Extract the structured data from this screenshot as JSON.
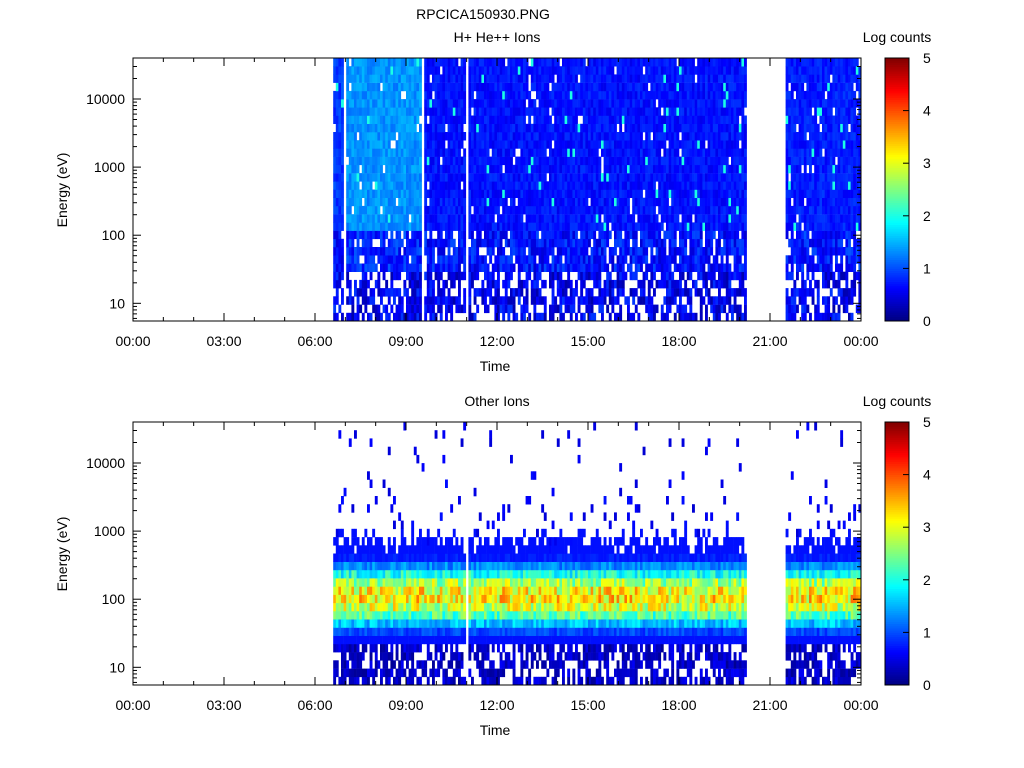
{
  "figure_title": "RPCICA150930.PNG",
  "chart_data": [
    {
      "type": "heatmap",
      "title": "H+ He++ Ions",
      "xlabel": "Time",
      "ylabel": "Energy (eV)",
      "x_ticks": [
        "00:00",
        "03:00",
        "06:00",
        "09:00",
        "12:00",
        "15:00",
        "18:00",
        "21:00",
        "00:00"
      ],
      "x_tick_hours": [
        0,
        3,
        6,
        9,
        12,
        15,
        18,
        21,
        24
      ],
      "y_scale": "log",
      "y_ticks": [
        10,
        100,
        1000,
        10000
      ],
      "y_tick_labels": [
        "10",
        "100",
        "1000",
        "10000"
      ],
      "ylim": [
        5.5,
        40000
      ],
      "colorbar": {
        "label": "Log counts",
        "ticks": [
          "0",
          "1",
          "2",
          "3",
          "4",
          "5"
        ],
        "range": [
          0,
          5
        ]
      },
      "data_coverage_hours": [
        [
          6.55,
          20.15
        ],
        [
          21.5,
          23.95
        ]
      ],
      "gaps_hours": [
        [
          6.9,
          7.0
        ],
        [
          9.45,
          9.55
        ],
        [
          10.95,
          11.05
        ]
      ],
      "segments": [
        {
          "start_h": 6.55,
          "end_h": 7.0,
          "level_high": 0.9,
          "level_low": 0.7
        },
        {
          "start_h": 7.0,
          "end_h": 9.45,
          "level_high": 1.35,
          "level_low": 0.8
        },
        {
          "start_h": 9.55,
          "end_h": 20.15,
          "level_high": 0.7,
          "level_low": 0.7
        },
        {
          "start_h": 21.5,
          "end_h": 23.95,
          "level_high": 0.75,
          "level_low": 0.75
        }
      ]
    },
    {
      "type": "heatmap",
      "title": "Other Ions",
      "xlabel": "Time",
      "ylabel": "Energy (eV)",
      "x_ticks": [
        "00:00",
        "03:00",
        "06:00",
        "09:00",
        "12:00",
        "15:00",
        "18:00",
        "21:00",
        "00:00"
      ],
      "x_tick_hours": [
        0,
        3,
        6,
        9,
        12,
        15,
        18,
        21,
        24
      ],
      "y_scale": "log",
      "y_ticks": [
        10,
        100,
        1000,
        10000
      ],
      "y_tick_labels": [
        "10",
        "100",
        "1000",
        "10000"
      ],
      "ylim": [
        5.5,
        40000
      ],
      "colorbar": {
        "label": "Log counts",
        "ticks": [
          "0",
          "1",
          "2",
          "3",
          "4",
          "5"
        ],
        "range": [
          0,
          5
        ]
      },
      "data_coverage_hours": [
        [
          6.55,
          20.15
        ],
        [
          21.5,
          23.95
        ]
      ],
      "gaps_hours": [
        [
          10.95,
          11.0
        ]
      ],
      "band": {
        "center_eV": 110,
        "peak_log_counts": 3.4,
        "upper_edge_eV": 650,
        "lower_edge_eV": 30
      }
    }
  ]
}
